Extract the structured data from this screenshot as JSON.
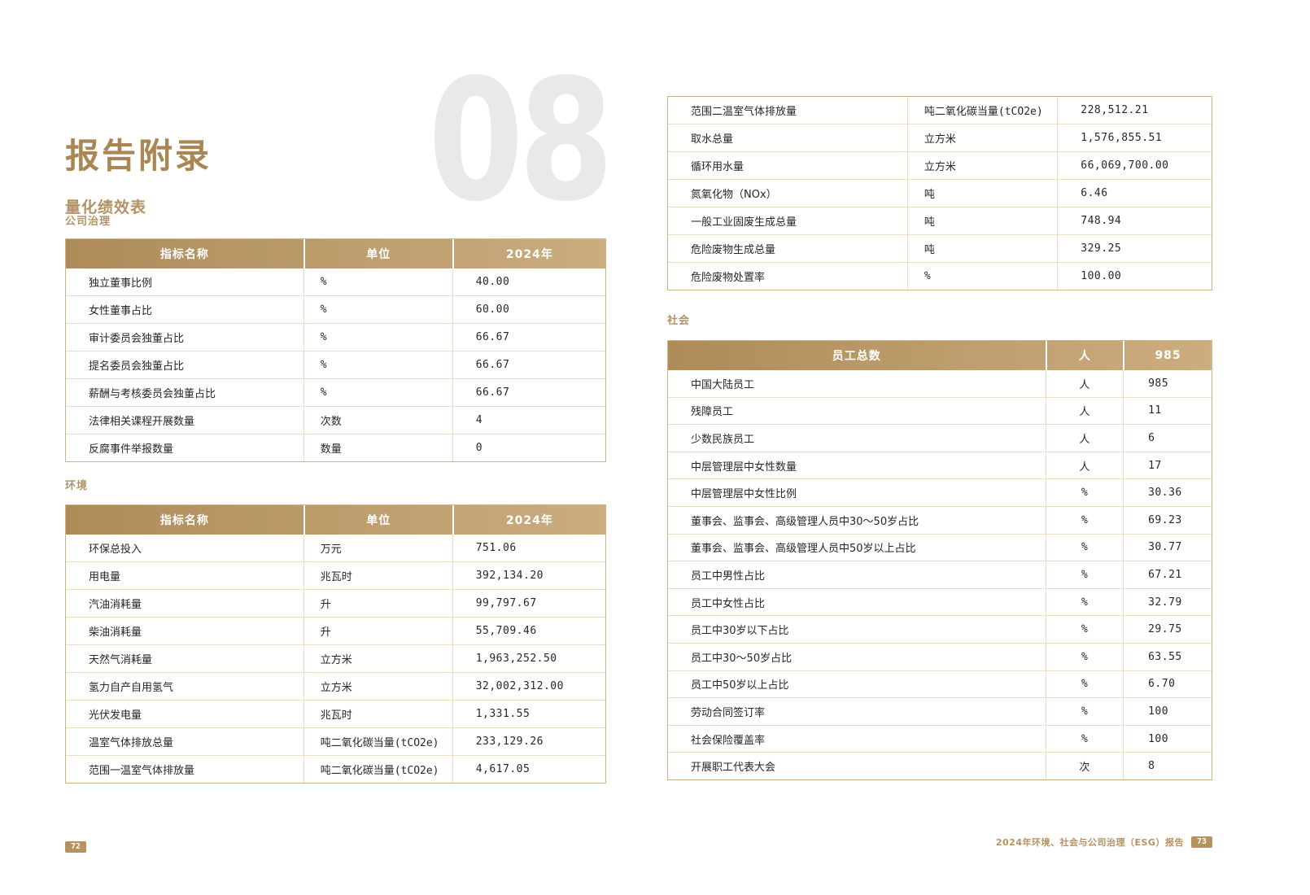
{
  "document": {
    "left_page": {
      "chapter_number": "08",
      "title": "报告附录",
      "subtitle": "量化绩效表",
      "page_number": "72",
      "governance": {
        "label": "公司治理",
        "table": {
          "headers": [
            "指标名称",
            "单位",
            "2024年"
          ],
          "rows": [
            [
              "独立董事比例",
              "%",
              "40.00"
            ],
            [
              "女性董事占比",
              "%",
              "60.00"
            ],
            [
              "审计委员会独董占比",
              "%",
              "66.67"
            ],
            [
              "提名委员会独董占比",
              "%",
              "66.67"
            ],
            [
              "薪酬与考核委员会独董占比",
              "%",
              "66.67"
            ],
            [
              "法律相关课程开展数量",
              "次数",
              "4"
            ],
            [
              "反腐事件举报数量",
              "数量",
              "0"
            ]
          ]
        }
      },
      "environment": {
        "label": "环境",
        "table": {
          "headers": [
            "指标名称",
            "单位",
            "2024年"
          ],
          "rows": [
            [
              "环保总投入",
              "万元",
              "751.06"
            ],
            [
              "用电量",
              "兆瓦时",
              "392,134.20"
            ],
            [
              "汽油消耗量",
              "升",
              "99,797.67"
            ],
            [
              "柴油消耗量",
              "升",
              "55,709.46"
            ],
            [
              "天然气消耗量",
              "立方米",
              "1,963,252.50"
            ],
            [
              "氢力自产自用氢气",
              "立方米",
              "32,002,312.00"
            ],
            [
              "光伏发电量",
              "兆瓦时",
              "1,331.55"
            ],
            [
              "温室气体排放总量",
              "吨二氧化碳当量(tCO2e)",
              "233,129.26"
            ],
            [
              "范围一温室气体排放量",
              "吨二氧化碳当量(tCO2e)",
              "4,617.05"
            ]
          ]
        }
      }
    },
    "right_page": {
      "page_number": "73",
      "footer_text": "2024年环境、社会与公司治理（ESG）报告",
      "environment_continued": {
        "rows": [
          [
            "范围二温室气体排放量",
            "吨二氧化碳当量(tCO2e)",
            "228,512.21"
          ],
          [
            "取水总量",
            "立方米",
            "1,576,855.51"
          ],
          [
            "循环用水量",
            "立方米",
            "66,069,700.00"
          ],
          [
            "氮氧化物（NOx）",
            "吨",
            "6.46"
          ],
          [
            "一般工业固废生成总量",
            "吨",
            "748.94"
          ],
          [
            "危险废物生成总量",
            "吨",
            "329.25"
          ],
          [
            "危险废物处置率",
            "%",
            "100.00"
          ]
        ]
      },
      "social": {
        "label": "社会",
        "table": {
          "headers": [
            "员工总数",
            "人",
            "985"
          ],
          "rows": [
            [
              "中国大陆员工",
              "人",
              "985"
            ],
            [
              "残障员工",
              "人",
              "11"
            ],
            [
              "少数民族员工",
              "人",
              "6"
            ],
            [
              "中层管理层中女性数量",
              "人",
              "17"
            ],
            [
              "中层管理层中女性比例",
              "%",
              "30.36"
            ],
            [
              "董事会、监事会、高级管理人员中30～50岁占比",
              "%",
              "69.23"
            ],
            [
              "董事会、监事会、高级管理人员中50岁以上占比",
              "%",
              "30.77"
            ],
            [
              "员工中男性占比",
              "%",
              "67.21"
            ],
            [
              "员工中女性占比",
              "%",
              "32.79"
            ],
            [
              "员工中30岁以下占比",
              "%",
              "29.75"
            ],
            [
              "员工中30～50岁占比",
              "%",
              "63.55"
            ],
            [
              "员工中50岁以上占比",
              "%",
              "6.70"
            ],
            [
              "劳动合同签订率",
              "%",
              "100"
            ],
            [
              "社会保险覆盖率",
              "%",
              "100"
            ],
            [
              "开展职工代表大会",
              "次",
              "8"
            ]
          ]
        }
      }
    },
    "colors": {
      "accent_gold": "#b3905e",
      "header_gradient_start": "#ae8b59",
      "header_gradient_end": "#ccad80",
      "chapter_number_gray": "#e9e9eb",
      "border_light": "#ecdcc0",
      "border_outer": "#cdb38a"
    }
  }
}
